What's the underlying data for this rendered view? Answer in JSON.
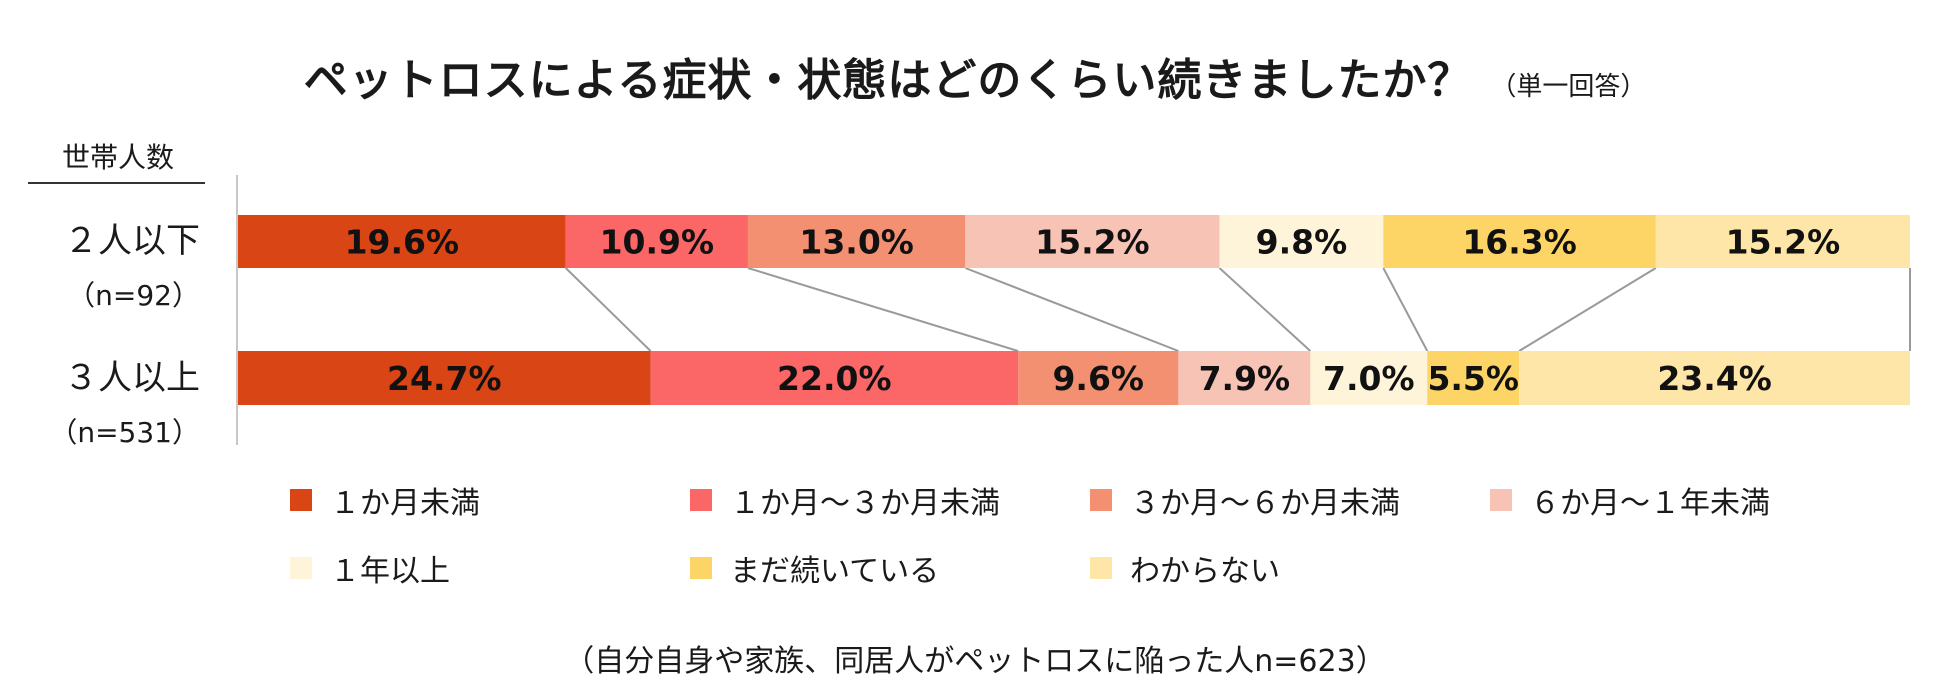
{
  "title": "ペットロスによる症状・状態はどのくらい続きましたか？",
  "subtitle": "（単一回答）",
  "row_header": "世帯人数",
  "footnote": "（自分自身や家族、同居人がペットロスに陥った人n=623）",
  "chart_data": {
    "type": "bar",
    "orientation": "horizontal",
    "stacked": "100%",
    "categories": [
      "２人以下",
      "３人以上"
    ],
    "category_counts": [
      "（n=92）",
      "（n=531）"
    ],
    "series": [
      {
        "name": "１か月未満",
        "color": "#d94515",
        "values": [
          19.6,
          24.7
        ],
        "labels": [
          "19.6%",
          "24.7%"
        ]
      },
      {
        "name": "１か月～３か月未満",
        "color": "#fb6766",
        "values": [
          10.9,
          22.0
        ],
        "labels": [
          "10.9%",
          "22.0%"
        ]
      },
      {
        "name": "３か月～６か月未満",
        "color": "#f39072",
        "values": [
          13.0,
          9.6
        ],
        "labels": [
          "13.0%",
          "9.6%"
        ]
      },
      {
        "name": "６か月～１年未満",
        "color": "#f7c3b5",
        "values": [
          15.2,
          7.9
        ],
        "labels": [
          "15.2%",
          "7.9%"
        ]
      },
      {
        "name": "１年以上",
        "color": "#fef4d9",
        "values": [
          9.8,
          7.0
        ],
        "labels": [
          "9.8%",
          "7.0%"
        ]
      },
      {
        "name": "まだ続いている",
        "color": "#fdd567",
        "values": [
          16.3,
          5.5
        ],
        "labels": [
          "16.3%",
          "5.5%"
        ]
      },
      {
        "name": "わからない",
        "color": "#fee6a8",
        "values": [
          15.2,
          23.4
        ],
        "labels": [
          "15.2%",
          "23.4%"
        ]
      }
    ],
    "legend_position": "bottom",
    "connector_lines": true
  }
}
